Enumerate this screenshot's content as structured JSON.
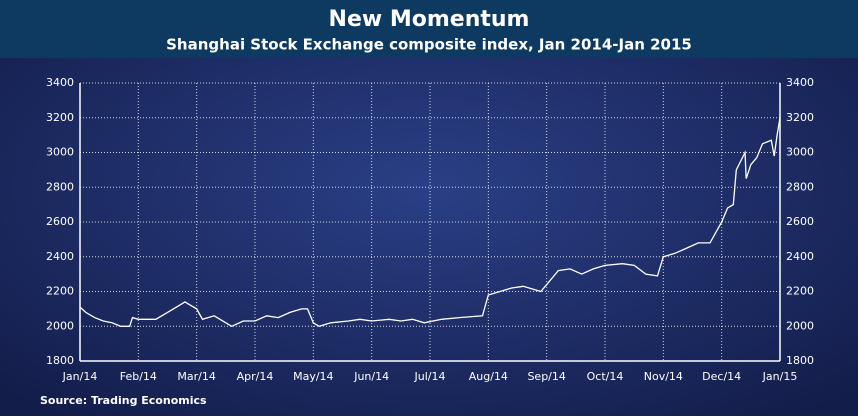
{
  "chart_data": {
    "type": "line",
    "title": "New Momentum",
    "subtitle": "Shanghai Stock Exchange composite index, Jan 2014-Jan 2015",
    "source": "Source: Trading Economics",
    "x": [
      0,
      0.1,
      0.25,
      0.4,
      0.55,
      0.7,
      0.85,
      0.9,
      1.0,
      1.3,
      1.5,
      1.7,
      1.8,
      1.9,
      2.0,
      2.1,
      2.3,
      2.5,
      2.6,
      2.8,
      3.0,
      3.2,
      3.4,
      3.6,
      3.8,
      3.9,
      4.0,
      4.1,
      4.3,
      4.6,
      4.8,
      5.0,
      5.3,
      5.5,
      5.7,
      5.9,
      6.2,
      6.5,
      6.9,
      7.0,
      7.2,
      7.4,
      7.6,
      7.9,
      8.0,
      8.2,
      8.4,
      8.6,
      8.8,
      9.0,
      9.3,
      9.5,
      9.7,
      9.9,
      10.0,
      10.2,
      10.4,
      10.6,
      10.8,
      11.0,
      11.1,
      11.2,
      11.25,
      11.4,
      11.42,
      11.5,
      11.6,
      11.7,
      11.85,
      11.9,
      11.95,
      12.0
    ],
    "series": [
      {
        "name": "Shanghai Composite",
        "color": "#ffffff",
        "values": [
          2110,
          2080,
          2050,
          2030,
          2020,
          2000,
          2000,
          2050,
          2040,
          2040,
          2080,
          2120,
          2140,
          2120,
          2100,
          2040,
          2060,
          2020,
          2000,
          2030,
          2030,
          2060,
          2050,
          2080,
          2100,
          2100,
          2020,
          2000,
          2020,
          2030,
          2040,
          2030,
          2040,
          2030,
          2040,
          2020,
          2040,
          2050,
          2060,
          2180,
          2200,
          2220,
          2230,
          2200,
          2240,
          2320,
          2330,
          2300,
          2330,
          2350,
          2360,
          2350,
          2300,
          2290,
          2400,
          2420,
          2450,
          2480,
          2480,
          2600,
          2680,
          2700,
          2900,
          3000,
          2850,
          2930,
          2970,
          3050,
          3070,
          2980,
          3100,
          3200
        ]
      }
    ],
    "xlim": [
      0,
      12
    ],
    "xticks": [
      {
        "value": 0,
        "label": "Jan/14"
      },
      {
        "value": 1,
        "label": "Feb/14"
      },
      {
        "value": 2,
        "label": "Mar/14"
      },
      {
        "value": 3,
        "label": "Apr/14"
      },
      {
        "value": 4,
        "label": "May/14"
      },
      {
        "value": 5,
        "label": "Jun/14"
      },
      {
        "value": 6,
        "label": "Jul/14"
      },
      {
        "value": 7,
        "label": "Aug/14"
      },
      {
        "value": 8,
        "label": "Sep/14"
      },
      {
        "value": 9,
        "label": "Oct/14"
      },
      {
        "value": 10,
        "label": "Nov/14"
      },
      {
        "value": 11,
        "label": "Dec/14"
      },
      {
        "value": 12,
        "label": "Jan/15"
      }
    ],
    "ylim": [
      1800,
      3400
    ],
    "yticks": [
      1800,
      2000,
      2200,
      2400,
      2600,
      2800,
      3000,
      3200,
      3400
    ],
    "grid": true
  }
}
